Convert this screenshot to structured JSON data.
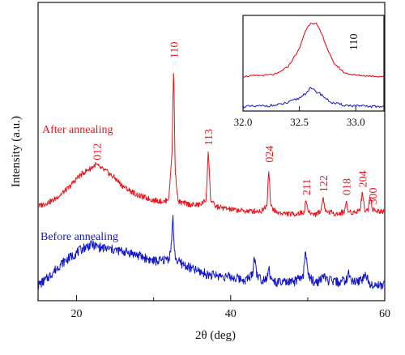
{
  "chart_data": [
    {
      "type": "line",
      "xlabel": "2θ (deg)",
      "ylabel": "Intensity (a.u.)",
      "xlim": [
        15,
        60
      ],
      "xticks": [
        20,
        40,
        60
      ],
      "grid": false,
      "colors": {
        "after": "#e8141b",
        "before": "#1216c8"
      },
      "series": [
        {
          "name": "After annealing",
          "x": [
            15,
            17,
            19,
            20,
            21,
            22,
            22.5,
            23,
            24,
            25,
            26,
            28,
            30,
            31.5,
            32,
            32.4,
            32.6,
            32.8,
            33.2,
            34,
            35,
            36,
            36.8,
            37.1,
            37.4,
            38,
            40,
            42,
            44,
            44.7,
            44.95,
            45.2,
            46,
            48,
            49.5,
            49.8,
            50.1,
            51,
            51.7,
            52,
            52.3,
            54,
            54.8,
            55,
            55.2,
            56,
            56.8,
            57.1,
            57.4,
            57.8,
            58.1,
            58.4,
            59,
            60
          ],
          "y": [
            0.08,
            0.12,
            0.2,
            0.26,
            0.3,
            0.33,
            0.35,
            0.33,
            0.3,
            0.26,
            0.21,
            0.15,
            0.12,
            0.11,
            0.14,
            0.45,
            1.0,
            0.3,
            0.11,
            0.1,
            0.09,
            0.09,
            0.12,
            0.44,
            0.12,
            0.08,
            0.06,
            0.05,
            0.05,
            0.09,
            0.33,
            0.08,
            0.04,
            0.03,
            0.04,
            0.12,
            0.04,
            0.03,
            0.05,
            0.14,
            0.05,
            0.03,
            0.05,
            0.12,
            0.05,
            0.04,
            0.06,
            0.17,
            0.06,
            0.05,
            0.16,
            0.06,
            0.05,
            0.05
          ]
        },
        {
          "name": "Before annealing",
          "x": [
            15,
            16,
            18,
            20,
            21,
            22,
            23,
            25,
            27,
            29,
            30,
            31,
            32,
            32.3,
            32.5,
            32.7,
            33,
            35,
            37,
            40,
            42,
            42.8,
            43.1,
            43.4,
            44,
            44.7,
            44.95,
            45.2,
            46,
            48,
            49.4,
            49.75,
            50.1,
            51,
            51.7,
            52,
            52.3,
            54,
            55,
            55.3,
            56,
            57,
            57.5,
            58,
            59,
            60
          ],
          "y": [
            0.0,
            0.02,
            0.08,
            0.12,
            0.14,
            0.15,
            0.14,
            0.13,
            0.12,
            0.1,
            0.09,
            0.09,
            0.1,
            0.15,
            0.26,
            0.12,
            0.09,
            0.06,
            0.04,
            0.03,
            0.02,
            0.04,
            0.11,
            0.04,
            0.02,
            0.03,
            0.07,
            0.02,
            0.01,
            0.01,
            0.03,
            0.13,
            0.03,
            0.01,
            0.02,
            0.04,
            0.02,
            0.01,
            0.02,
            0.04,
            0.01,
            0.02,
            0.04,
            0.01,
            0.0,
            0.0
          ]
        }
      ],
      "peak_labels": [
        {
          "label": "012",
          "x": 22.6,
          "series": "after"
        },
        {
          "label": "110",
          "x": 32.6,
          "series": "after"
        },
        {
          "label": "113",
          "x": 37.1,
          "series": "after"
        },
        {
          "label": "024",
          "x": 44.95,
          "series": "after"
        },
        {
          "label": "211",
          "x": 49.8,
          "series": "after"
        },
        {
          "label": "122",
          "x": 52.0,
          "series": "after"
        },
        {
          "label": "018",
          "x": 55.0,
          "series": "after"
        },
        {
          "label": "204",
          "x": 57.1,
          "series": "after"
        },
        {
          "label": "300",
          "x": 58.4,
          "series": "after"
        }
      ],
      "series_labels": [
        {
          "text": "After annealing",
          "series": "after"
        },
        {
          "text": "Before annealing",
          "series": "before"
        }
      ]
    },
    {
      "type": "line",
      "title": "110",
      "xlim": [
        32.0,
        33.25
      ],
      "xticks": [
        32.0,
        32.5,
        33.0
      ],
      "xtick_labels": [
        "32.0",
        "32.5",
        "33.0"
      ],
      "series": [
        {
          "name": "After annealing",
          "x": [
            32.0,
            32.1,
            32.2,
            32.3,
            32.4,
            32.5,
            32.55,
            32.6,
            32.65,
            32.7,
            32.75,
            32.8,
            32.9,
            33.0,
            33.1,
            33.2,
            33.25
          ],
          "y": [
            0.08,
            0.09,
            0.1,
            0.12,
            0.25,
            0.55,
            0.85,
            1.0,
            0.98,
            0.8,
            0.55,
            0.32,
            0.14,
            0.1,
            0.09,
            0.08,
            0.08
          ]
        },
        {
          "name": "Before annealing",
          "x": [
            32.0,
            32.1,
            32.2,
            32.3,
            32.4,
            32.5,
            32.55,
            32.6,
            32.65,
            32.7,
            32.75,
            32.8,
            32.9,
            33.0,
            33.1,
            33.2,
            33.25
          ],
          "y": [
            0.02,
            0.02,
            0.03,
            0.04,
            0.08,
            0.15,
            0.22,
            0.3,
            0.25,
            0.2,
            0.12,
            0.07,
            0.04,
            0.03,
            0.02,
            0.02,
            0.02
          ]
        }
      ]
    }
  ]
}
